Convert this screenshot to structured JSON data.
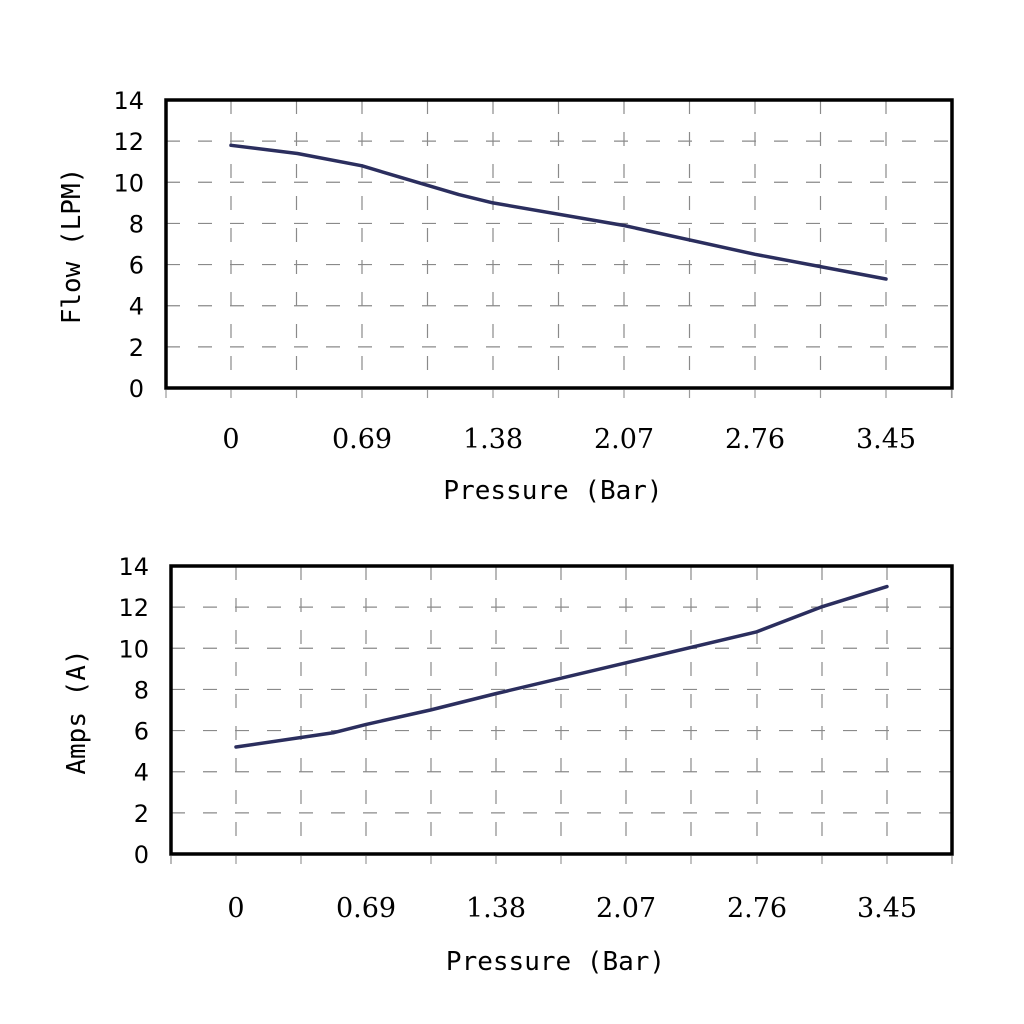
{
  "chart_data": [
    {
      "type": "line",
      "title": "",
      "xlabel": "Pressure (Bar)",
      "ylabel": "Flow (LPM)",
      "categories": [
        "0",
        "0.69",
        "1.38",
        "2.07",
        "2.76",
        "3.45"
      ],
      "yticks": [
        "0",
        "2",
        "4",
        "6",
        "8",
        "10",
        "12",
        "14"
      ],
      "ylim": [
        0,
        14
      ],
      "grid": true,
      "series": [
        {
          "name": "Flow",
          "color": "#2b2e5e",
          "x": [
            0,
            0.35,
            0.69,
            0.87,
            1.2,
            1.38,
            2.07,
            2.76,
            3.45
          ],
          "values": [
            11.8,
            11.4,
            10.8,
            10.3,
            9.4,
            9.0,
            7.9,
            6.5,
            5.3
          ]
        }
      ]
    },
    {
      "type": "line",
      "title": "",
      "xlabel": "Pressure (Bar)",
      "ylabel": "Amps (A)",
      "categories": [
        "0",
        "0.69",
        "1.38",
        "2.07",
        "2.76",
        "3.45"
      ],
      "yticks": [
        "0",
        "2",
        "4",
        "6",
        "8",
        "10",
        "12",
        "14"
      ],
      "ylim": [
        0,
        14
      ],
      "grid": true,
      "series": [
        {
          "name": "Amps",
          "color": "#2b2e5e",
          "x": [
            0,
            0.52,
            0.69,
            1.03,
            1.38,
            2.07,
            2.76,
            3.1,
            3.45
          ],
          "values": [
            5.2,
            5.9,
            6.3,
            7.0,
            7.8,
            9.3,
            10.8,
            12.0,
            13.0
          ]
        }
      ]
    }
  ]
}
